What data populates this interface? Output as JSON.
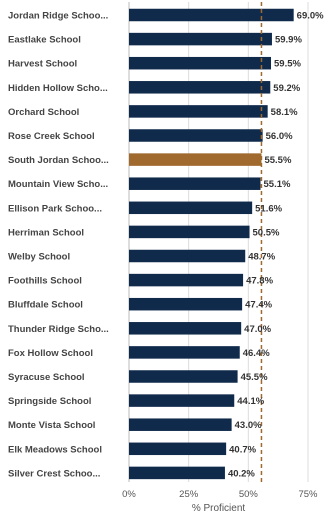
{
  "chart_data": {
    "type": "bar",
    "orientation": "horizontal",
    "categories": [
      "Jordan Ridge Schoo...",
      "Eastlake School",
      "Harvest School",
      "Hidden Hollow Scho...",
      "Orchard School",
      "Rose Creek School",
      "South Jordan Schoo...",
      "Mountain View Scho...",
      "Ellison Park Schoo...",
      "Herriman School",
      "Welby School",
      "Foothills School",
      "Bluffdale School",
      "Thunder Ridge Scho...",
      "Fox Hollow School",
      "Syracuse School",
      "Springside School",
      "Monte Vista School",
      "Elk Meadows School",
      "Silver Crest Schoo..."
    ],
    "values": [
      69.0,
      59.9,
      59.5,
      59.2,
      58.1,
      56.0,
      55.5,
      55.1,
      51.6,
      50.5,
      48.7,
      47.8,
      47.4,
      47.0,
      46.4,
      45.5,
      44.1,
      43.0,
      40.7,
      40.2
    ],
    "value_labels": [
      "69.0%",
      "59.9%",
      "59.5%",
      "59.2%",
      "58.1%",
      "56.0%",
      "55.5%",
      "55.1%",
      "51.6%",
      "50.5%",
      "48.7%",
      "47.8%",
      "47.4%",
      "47.0%",
      "46.4%",
      "45.5%",
      "44.1%",
      "43.0%",
      "40.7%",
      "40.2%"
    ],
    "highlight_index": 6,
    "xlabel": "% Proficient",
    "xlim": [
      0,
      75
    ],
    "x_ticks": [
      0,
      25,
      50,
      75
    ],
    "x_tick_labels": [
      "0%",
      "25%",
      "50%",
      "75%"
    ],
    "reference_line": 55.5,
    "grid": "vertical",
    "colors": {
      "bar": "#102a4c",
      "highlight": "#a0692e",
      "reference_line": "#a0692e",
      "grid": "#dcdcdc",
      "axis": "#bbbbbb"
    }
  }
}
